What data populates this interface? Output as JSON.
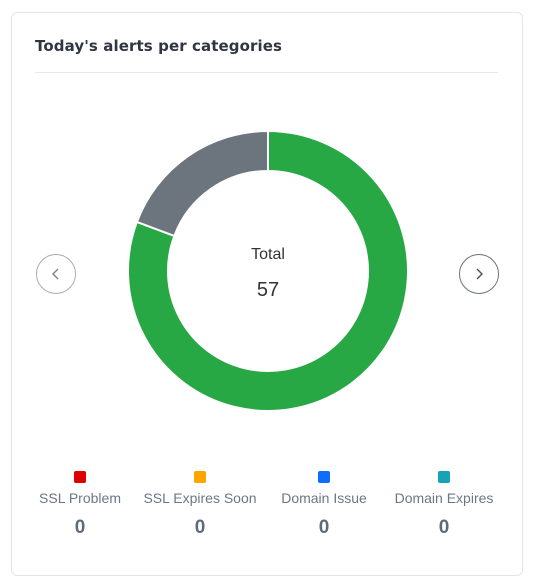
{
  "card": {
    "title": "Today's alerts per categories"
  },
  "chart_data": {
    "type": "pie",
    "donut": true,
    "center_label": "Total",
    "total": 57,
    "slices": [
      {
        "value": 46,
        "color": "#28a745"
      },
      {
        "value": 11,
        "color": "#6c757d"
      }
    ]
  },
  "nav": {
    "prev_icon": "chevron-left-icon",
    "next_icon": "chevron-right-icon"
  },
  "legend": [
    {
      "label": "SSL Problem",
      "count": "0",
      "color": "#e00000"
    },
    {
      "label": "SSL Expires Soon",
      "count": "0",
      "color": "#ffa500"
    },
    {
      "label": "Domain Issue",
      "count": "0",
      "color": "#0d6efd"
    },
    {
      "label": "Domain Expires",
      "count": "0",
      "color": "#17a2b8"
    }
  ]
}
